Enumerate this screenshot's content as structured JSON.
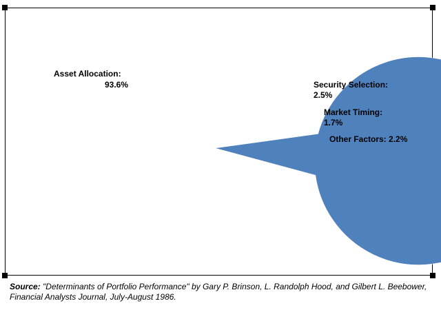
{
  "chart_data": {
    "type": "pie",
    "title": "",
    "slices": [
      {
        "name": "Asset Allocation",
        "value": 93.6,
        "color": "#4F81BD",
        "label_name": "Asset Allocation:",
        "label_value": "93.6%"
      },
      {
        "name": "Security Selection",
        "value": 2.5,
        "color": "#C0504D",
        "label_name": "Security Selection:",
        "label_value": "2.5%"
      },
      {
        "name": "Market Timing",
        "value": 1.7,
        "color": "#9BBB59",
        "label_name": "Market Timing:",
        "label_value": "1.7%"
      },
      {
        "name": "Other Factors",
        "value": 2.2,
        "color": "#8064A2",
        "label_name": "Other Factors: 2.2%",
        "label_value": ""
      }
    ]
  },
  "source": {
    "prefix": "Source:",
    "text": " \"Determinants of Portfolio Performance\" by Gary P. Brinson, L. Randolph Hood, and Gilbert L. Beebower, Financial Analysts Journal, July-August 1986."
  }
}
